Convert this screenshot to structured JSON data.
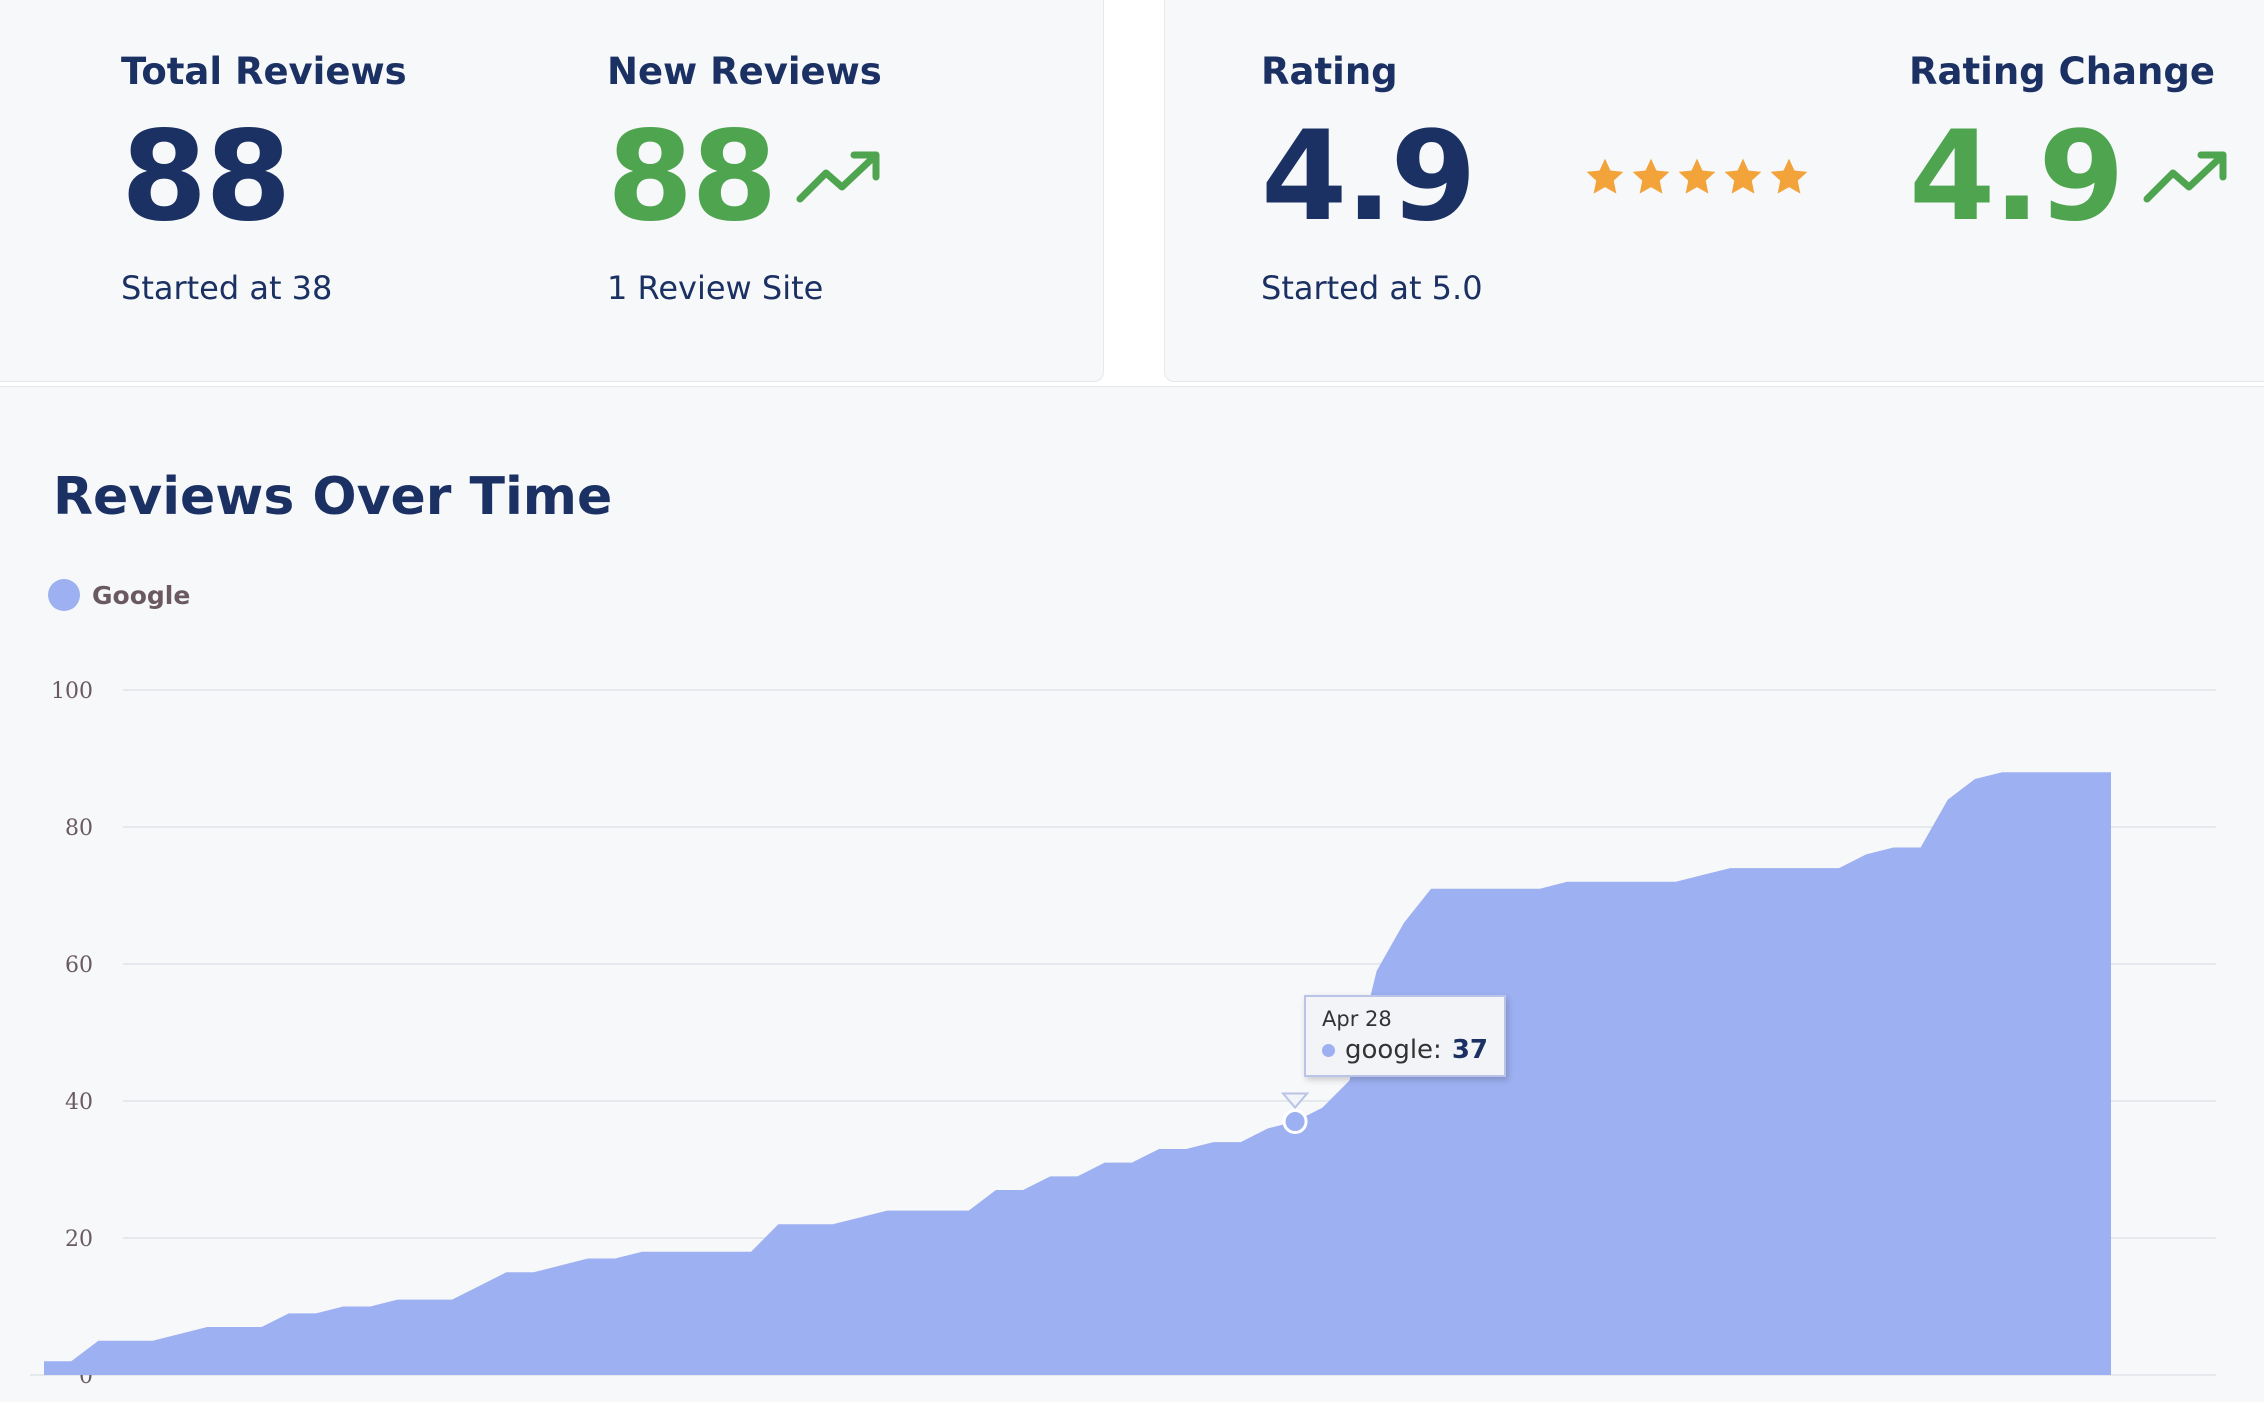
{
  "stats": {
    "total_reviews": {
      "label": "Total Reviews",
      "value": "88",
      "sub": "Started at 38"
    },
    "new_reviews": {
      "label": "New Reviews",
      "value": "88",
      "sub": "1 Review Site"
    },
    "rating": {
      "label": "Rating",
      "value": "4.9",
      "sub": "Started at 5.0",
      "stars": 5
    },
    "rating_change": {
      "label": "Rating Change",
      "value": "4.9"
    }
  },
  "colors": {
    "navy": "#1b3163",
    "green": "#4fa54f",
    "star": "#f2a33a",
    "series": "#9db0f1"
  },
  "chart": {
    "title": "Reviews Over Time",
    "legend": [
      {
        "name": "Google",
        "color": "#9db0f1"
      }
    ],
    "tooltip": {
      "date": "Apr 28",
      "series": "google",
      "value": "37"
    }
  },
  "chart_data": {
    "type": "area",
    "title": "Reviews Over Time",
    "ylim": [
      0,
      100
    ],
    "yticks": [
      "0",
      "20",
      "40",
      "60",
      "80",
      "100"
    ],
    "grid": true,
    "legend_position": "top-left",
    "series": [
      {
        "name": "Google",
        "values": [
          2,
          2,
          5,
          5,
          5,
          6,
          7,
          7,
          7,
          9,
          9,
          10,
          10,
          11,
          11,
          11,
          13,
          15,
          15,
          16,
          17,
          17,
          18,
          18,
          18,
          18,
          18,
          22,
          22,
          22,
          23,
          24,
          24,
          24,
          24,
          27,
          27,
          29,
          29,
          31,
          31,
          33,
          33,
          34,
          34,
          36,
          37,
          39,
          43,
          59,
          66,
          71,
          71,
          71,
          71,
          71,
          72,
          72,
          72,
          72,
          72,
          73,
          74,
          74,
          74,
          74,
          74,
          76,
          77,
          77,
          84,
          87,
          88,
          88,
          88,
          88,
          88
        ]
      }
    ]
  }
}
